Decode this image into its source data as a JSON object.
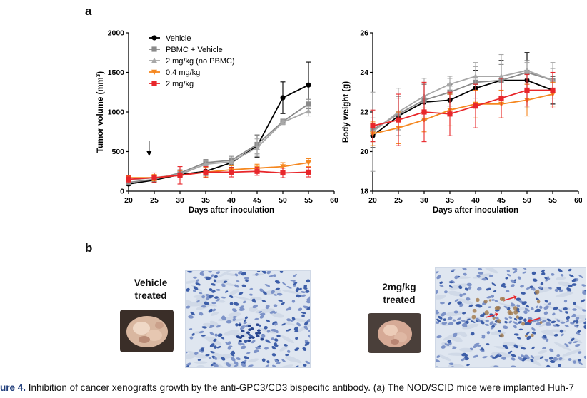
{
  "panels": {
    "a": "a",
    "b": "b"
  },
  "chart_data": [
    {
      "type": "line",
      "xlabel": "Days after inoculation",
      "ylabel_main": "Tumor volume (mm",
      "ylabel_sup": "3",
      "ylabel_end": ")",
      "xlim": [
        20,
        60
      ],
      "ylim": [
        0,
        2000
      ],
      "x_ticks": [
        "20",
        "25",
        "30",
        "35",
        "40",
        "45",
        "50",
        "55",
        "60"
      ],
      "y_ticks": [
        "0",
        "500",
        "1000",
        "1500",
        "2000"
      ],
      "arrow_day": 24,
      "x": [
        20,
        25,
        30,
        35,
        40,
        45,
        50,
        55
      ],
      "legend_position": "top-left",
      "series": [
        {
          "name": "Vehicle",
          "color": "#000000",
          "marker": "circle",
          "values": [
            90,
            140,
            210,
            250,
            360,
            570,
            1180,
            1340
          ],
          "errors": [
            20,
            30,
            40,
            50,
            60,
            140,
            200,
            290
          ]
        },
        {
          "name": "PBMC + Vehicle",
          "color": "#8a8a8a",
          "marker": "square",
          "values": [
            110,
            150,
            230,
            360,
            390,
            590,
            880,
            1100
          ],
          "errors": [
            20,
            30,
            40,
            40,
            50,
            120,
            30,
            60
          ]
        },
        {
          "name": "2 mg/kg (no PBMC)",
          "color": "#a8a8a8",
          "marker": "triangle",
          "values": [
            140,
            170,
            210,
            340,
            370,
            550,
            870,
            1010
          ],
          "errors": [
            20,
            30,
            40,
            40,
            50,
            110,
            30,
            60
          ]
        },
        {
          "name": "0.4 mg/kg",
          "color": "#f5871f",
          "marker": "triangle-down",
          "values": [
            170,
            170,
            200,
            240,
            270,
            290,
            310,
            360
          ],
          "errors": [
            30,
            40,
            60,
            60,
            50,
            50,
            50,
            50
          ]
        },
        {
          "name": "2 mg/kg",
          "color": "#e8262a",
          "marker": "square",
          "values": [
            150,
            170,
            200,
            240,
            240,
            250,
            230,
            240
          ],
          "errors": [
            40,
            60,
            110,
            70,
            60,
            50,
            60,
            60
          ]
        }
      ]
    },
    {
      "type": "line",
      "xlabel": "Days after inoculation",
      "ylabel": "Body weight (g)",
      "xlim": [
        20,
        60
      ],
      "ylim": [
        18,
        26
      ],
      "x_ticks": [
        "20",
        "25",
        "30",
        "35",
        "40",
        "45",
        "50",
        "55",
        "60"
      ],
      "y_ticks": [
        "18",
        "20",
        "22",
        "24",
        "26"
      ],
      "x": [
        20,
        25,
        30,
        35,
        40,
        45,
        50,
        55
      ],
      "series": [
        {
          "name": "Vehicle",
          "color": "#000000",
          "marker": "circle",
          "values": [
            20.8,
            21.8,
            22.5,
            22.6,
            23.2,
            23.6,
            23.6,
            23.1
          ],
          "errors": [
            0.6,
            1.0,
            0.9,
            0.8,
            0.9,
            1.0,
            1.4,
            0.7
          ]
        },
        {
          "name": "PBMC + Vehicle",
          "color": "#8a8a8a",
          "marker": "square",
          "values": [
            21.1,
            21.9,
            22.6,
            23.0,
            23.5,
            23.6,
            24.0,
            23.6
          ],
          "errors": [
            0.6,
            0.8,
            0.8,
            0.7,
            0.8,
            0.8,
            0.6,
            0.6
          ]
        },
        {
          "name": "2 mg/kg (no PBMC)",
          "color": "#a8a8a8",
          "marker": "triangle",
          "values": [
            21.0,
            22.0,
            22.8,
            23.4,
            23.8,
            23.8,
            24.1,
            23.6
          ],
          "errors": [
            2.0,
            1.2,
            0.9,
            0.4,
            0.7,
            1.1,
            0.4,
            0.9
          ]
        },
        {
          "name": "0.4 mg/kg",
          "color": "#f5871f",
          "marker": "triangle-down",
          "values": [
            20.9,
            21.2,
            21.6,
            22.1,
            22.4,
            22.4,
            22.6,
            22.9
          ],
          "errors": [
            0.6,
            0.8,
            0.6,
            0.8,
            0.7,
            0.7,
            0.8,
            0.6
          ]
        },
        {
          "name": "2 mg/kg",
          "color": "#e8262a",
          "marker": "square",
          "values": [
            21.3,
            21.6,
            22.0,
            21.9,
            22.3,
            22.7,
            23.1,
            23.1
          ],
          "errors": [
            0.8,
            1.3,
            1.5,
            1.1,
            1.1,
            1.0,
            0.8,
            0.9
          ]
        }
      ]
    }
  ],
  "photos": {
    "left_title_line1": "Vehicle",
    "left_title_line2": "treated",
    "right_title_line1": "2mg/kg",
    "right_title_line2": "treated"
  },
  "caption": {
    "figure": "ure 4.",
    "text": " Inhibition of cancer xenografts growth by the anti-GPC3/CD3 bispecific antibody. (a) The NOD/SCID mice were implanted Huh-7"
  }
}
